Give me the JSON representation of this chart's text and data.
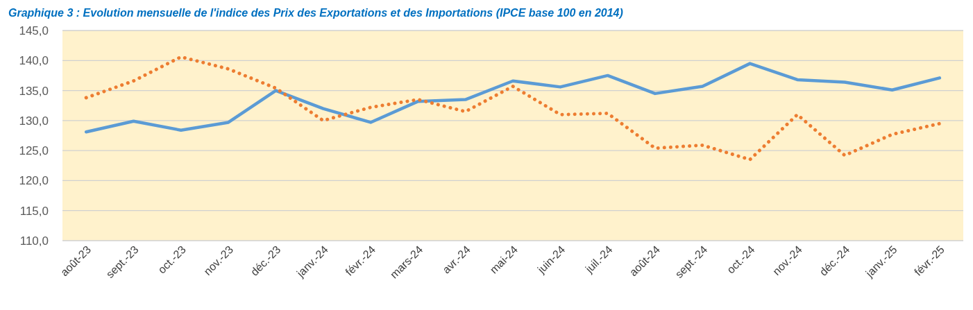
{
  "chart_data": {
    "type": "line",
    "title": "Graphique 3 : Evolution mensuelle de l'indice des Prix des Exportations et des Importations (IPCE base 100 en 2014)",
    "categories": [
      "août-23",
      "sept.-23",
      "oct.-23",
      "nov.-23",
      "déc.-23",
      "janv.-24",
      "févr.-24",
      "mars-24",
      "avr.-24",
      "mai-24",
      "juin-24",
      "juil.-24",
      "août-24",
      "sept.-24",
      "oct.-24",
      "nov.-24",
      "déc.-24",
      "janv.-25",
      "févr.-25"
    ],
    "series": [
      {
        "color": "#5b9bd5",
        "line_style": "solid",
        "values": [
          128.1,
          129.9,
          128.4,
          129.7,
          135.0,
          132.0,
          129.7,
          133.2,
          133.5,
          136.6,
          135.6,
          137.5,
          134.5,
          135.7,
          139.5,
          136.8,
          136.4,
          135.1,
          137.1
        ]
      },
      {
        "color": "#ed7d31",
        "line_style": "dotted",
        "values": [
          133.8,
          136.6,
          140.6,
          138.6,
          135.4,
          130.0,
          132.2,
          133.5,
          131.5,
          135.7,
          131.0,
          131.2,
          125.4,
          125.9,
          123.5,
          131.0,
          124.2,
          127.7,
          129.5
        ]
      }
    ],
    "ylim": [
      110,
      145
    ],
    "yticks": [
      {
        "value": 110,
        "label": "110,0"
      },
      {
        "value": 115,
        "label": "115,0"
      },
      {
        "value": 120,
        "label": "120,0"
      },
      {
        "value": 125,
        "label": "125,0"
      },
      {
        "value": 130,
        "label": "130,0"
      },
      {
        "value": 135,
        "label": "135,0"
      },
      {
        "value": 140,
        "label": "140,0"
      },
      {
        "value": 145,
        "label": "145,0"
      }
    ],
    "grid": "y",
    "marker": "none"
  }
}
